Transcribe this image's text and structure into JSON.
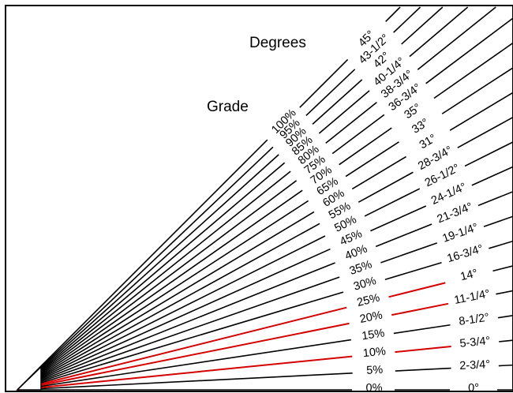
{
  "header": {
    "degrees_title": "Degrees",
    "grade_title": "Grade"
  },
  "colors": {
    "line": "#000000",
    "highlight": "#d40000",
    "frame": "#000000",
    "background": "#ffffff"
  },
  "slopes": [
    {
      "grade": "0%",
      "degrees": "0°",
      "angle": 0,
      "red": false
    },
    {
      "grade": "5%",
      "degrees": "2-3/4°",
      "angle": 2.86,
      "red": false
    },
    {
      "grade": "10%",
      "degrees": "5-3/4°",
      "angle": 5.71,
      "red": true
    },
    {
      "grade": "15%",
      "degrees": "8-1/2°",
      "angle": 8.53,
      "red": false
    },
    {
      "grade": "20%",
      "degrees": "11-1/4°",
      "angle": 11.31,
      "red": true
    },
    {
      "grade": "25%",
      "degrees": "14°",
      "angle": 14.04,
      "red": true
    },
    {
      "grade": "30%",
      "degrees": "16-3/4°",
      "angle": 16.7,
      "red": false
    },
    {
      "grade": "35%",
      "degrees": "19-1/4°",
      "angle": 19.29,
      "red": false
    },
    {
      "grade": "40%",
      "degrees": "21-3/4°",
      "angle": 21.8,
      "red": false
    },
    {
      "grade": "45%",
      "degrees": "24-1/4°",
      "angle": 24.23,
      "red": false
    },
    {
      "grade": "50%",
      "degrees": "26-1/2°",
      "angle": 26.57,
      "red": false
    },
    {
      "grade": "55%",
      "degrees": "28-3/4°",
      "angle": 28.81,
      "red": false
    },
    {
      "grade": "60%",
      "degrees": "31°",
      "angle": 30.96,
      "red": false
    },
    {
      "grade": "65%",
      "degrees": "33°",
      "angle": 33.02,
      "red": false
    },
    {
      "grade": "70%",
      "degrees": "35°",
      "angle": 34.99,
      "red": false
    },
    {
      "grade": "75%",
      "degrees": "36-3/4°",
      "angle": 36.87,
      "red": false
    },
    {
      "grade": "80%",
      "degrees": "38-3/4°",
      "angle": 38.66,
      "red": false
    },
    {
      "grade": "85%",
      "degrees": "40-1/4°",
      "angle": 40.36,
      "red": false
    },
    {
      "grade": "90%",
      "degrees": "42°",
      "angle": 41.99,
      "red": false
    },
    {
      "grade": "95%",
      "degrees": "43-1/2°",
      "angle": 43.53,
      "red": false
    },
    {
      "grade": "100%",
      "degrees": "45°",
      "angle": 45.0,
      "red": false
    }
  ]
}
